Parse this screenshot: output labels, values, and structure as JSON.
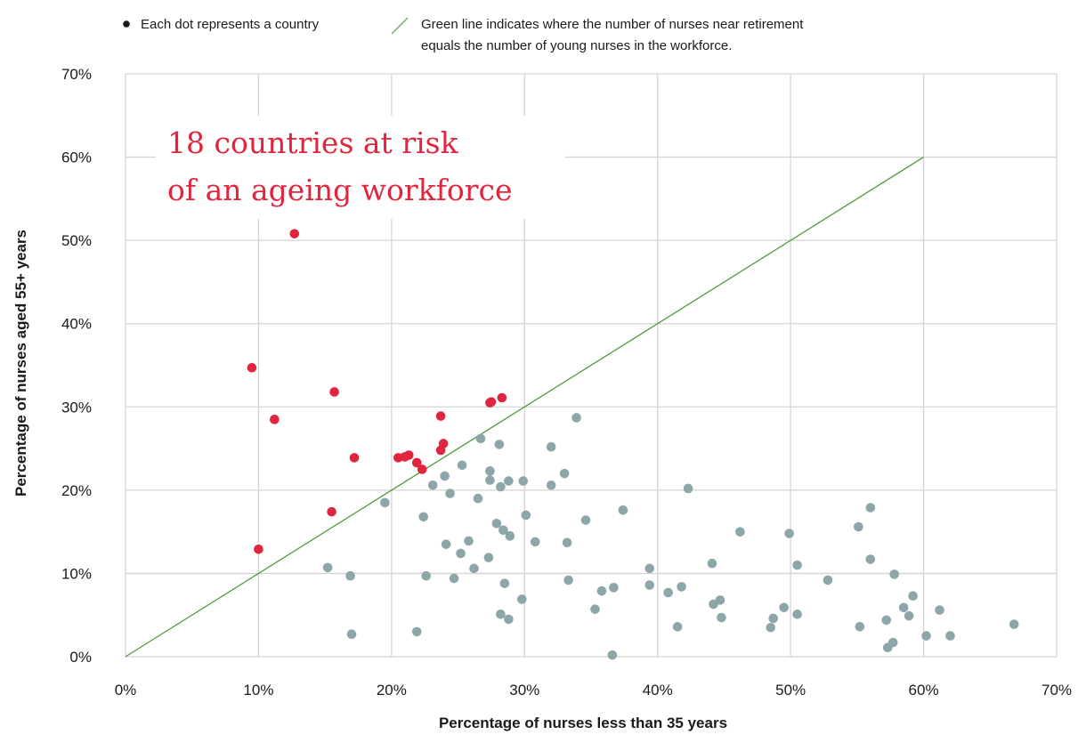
{
  "chart_data": {
    "type": "scatter",
    "title": "",
    "xlabel": "Percentage of nurses less than 35 years",
    "ylabel": "Percentage of nurses aged 55+ years",
    "xlim": [
      0,
      70
    ],
    "ylim": [
      0,
      70
    ],
    "x_ticks": [
      "0%",
      "10%",
      "20%",
      "30%",
      "40%",
      "50%",
      "60%",
      "70%"
    ],
    "y_ticks": [
      "0%",
      "10%",
      "20%",
      "30%",
      "40%",
      "50%",
      "60%",
      "70%"
    ],
    "grid": true,
    "legend": {
      "position": "top",
      "dot_label": "Each dot represents a country",
      "line_label_1": "Green line indicates where the number of nurses near retirement",
      "line_label_2": "equals the number of young nurses in the workforce."
    },
    "annotation": {
      "line_1": "18 countries at risk",
      "line_2": "of an ageing workforce"
    },
    "reference_line": {
      "from": [
        0,
        0
      ],
      "to": [
        60,
        60
      ],
      "color": "#4f9b3c"
    },
    "colors": {
      "at_risk": "#e0263f",
      "other": "#8ca6a9",
      "grid": "#d4d4d4",
      "legend_dot": "#1a1a1a"
    },
    "series": [
      {
        "group": "at_risk",
        "points": [
          [
            12.7,
            50.8
          ],
          [
            9.5,
            34.7
          ],
          [
            15.7,
            31.8
          ],
          [
            11.2,
            28.5
          ],
          [
            17.2,
            23.9
          ],
          [
            10.0,
            12.9
          ],
          [
            15.5,
            17.4
          ],
          [
            20.5,
            23.9
          ],
          [
            21.3,
            24.2
          ],
          [
            21.9,
            23.3
          ],
          [
            22.3,
            22.5
          ],
          [
            23.7,
            28.9
          ],
          [
            23.9,
            25.6
          ],
          [
            23.7,
            24.8
          ],
          [
            27.5,
            30.6
          ],
          [
            28.3,
            31.1
          ],
          [
            27.4,
            30.5
          ],
          [
            21.0,
            24.0
          ]
        ]
      },
      {
        "group": "other",
        "points": [
          [
            15.2,
            10.7
          ],
          [
            16.9,
            9.7
          ],
          [
            17.0,
            2.7
          ],
          [
            19.5,
            18.5
          ],
          [
            21.9,
            3.0
          ],
          [
            22.4,
            16.8
          ],
          [
            22.6,
            9.7
          ],
          [
            23.1,
            20.6
          ],
          [
            24.0,
            21.7
          ],
          [
            24.1,
            13.5
          ],
          [
            24.4,
            19.6
          ],
          [
            24.7,
            9.4
          ],
          [
            25.2,
            12.4
          ],
          [
            25.3,
            23.0
          ],
          [
            25.8,
            13.9
          ],
          [
            26.2,
            10.6
          ],
          [
            26.5,
            19.0
          ],
          [
            26.7,
            26.2
          ],
          [
            27.3,
            11.9
          ],
          [
            27.4,
            22.3
          ],
          [
            27.4,
            21.2
          ],
          [
            27.9,
            16.0
          ],
          [
            28.1,
            25.5
          ],
          [
            28.2,
            20.4
          ],
          [
            28.2,
            5.1
          ],
          [
            28.4,
            15.2
          ],
          [
            28.5,
            8.8
          ],
          [
            28.8,
            21.1
          ],
          [
            28.9,
            14.5
          ],
          [
            28.8,
            4.5
          ],
          [
            29.8,
            6.9
          ],
          [
            29.9,
            21.1
          ],
          [
            30.1,
            17.0
          ],
          [
            30.8,
            13.8
          ],
          [
            32.0,
            25.2
          ],
          [
            32.0,
            20.6
          ],
          [
            33.0,
            22.0
          ],
          [
            33.2,
            13.7
          ],
          [
            33.3,
            9.2
          ],
          [
            33.9,
            28.7
          ],
          [
            34.6,
            16.4
          ],
          [
            35.3,
            5.7
          ],
          [
            35.8,
            7.9
          ],
          [
            36.6,
            0.2
          ],
          [
            36.7,
            8.3
          ],
          [
            37.4,
            17.6
          ],
          [
            39.4,
            10.6
          ],
          [
            39.4,
            8.6
          ],
          [
            40.8,
            7.7
          ],
          [
            41.5,
            3.6
          ],
          [
            41.8,
            8.4
          ],
          [
            42.3,
            20.2
          ],
          [
            44.1,
            11.2
          ],
          [
            44.2,
            6.3
          ],
          [
            44.7,
            6.8
          ],
          [
            44.8,
            4.7
          ],
          [
            46.2,
            15.0
          ],
          [
            48.5,
            3.5
          ],
          [
            48.7,
            4.6
          ],
          [
            49.5,
            5.9
          ],
          [
            49.9,
            14.8
          ],
          [
            50.5,
            11.0
          ],
          [
            50.5,
            5.1
          ],
          [
            52.8,
            9.2
          ],
          [
            55.1,
            15.6
          ],
          [
            55.2,
            3.6
          ],
          [
            56.0,
            17.9
          ],
          [
            56.0,
            11.7
          ],
          [
            57.2,
            4.4
          ],
          [
            57.3,
            1.1
          ],
          [
            57.7,
            1.7
          ],
          [
            57.8,
            9.9
          ],
          [
            58.5,
            5.9
          ],
          [
            58.9,
            4.9
          ],
          [
            59.2,
            7.3
          ],
          [
            60.2,
            2.5
          ],
          [
            61.2,
            5.6
          ],
          [
            62.0,
            2.5
          ],
          [
            66.8,
            3.9
          ]
        ]
      }
    ]
  }
}
